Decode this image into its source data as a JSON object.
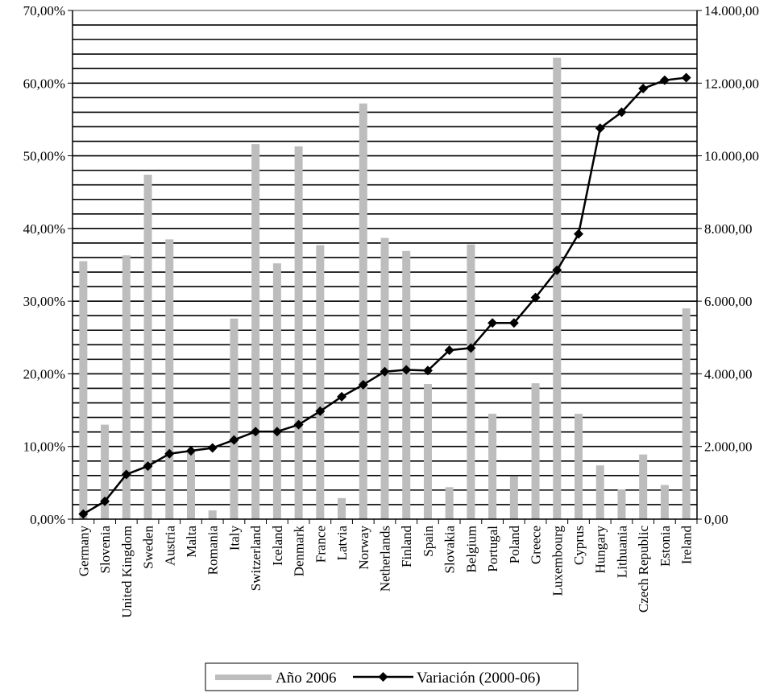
{
  "chart_data": {
    "type": "bar",
    "categories": [
      "Germany",
      "Slovenia",
      "United Kingdom",
      "Sweden",
      "Austria",
      "Malta",
      "Romania",
      "Italy",
      "Switzerland",
      "Iceland",
      "Denmark",
      "France",
      "Latvia",
      "Norway",
      "Netherlands",
      "Finland",
      "Spain",
      "Slovakia",
      "Belgium",
      "Portugal",
      "Poland",
      "Greece",
      "Luxembourg",
      "Cyprus",
      "Hungary",
      "Lithuania",
      "Czech Republic",
      "Estonia",
      "Ireland"
    ],
    "series": [
      {
        "name": "Año 2006",
        "type": "bar",
        "axis": "left",
        "color": "#bdbdbd",
        "values": [
          35.5,
          13.0,
          36.3,
          47.4,
          38.5,
          9.3,
          1.2,
          27.6,
          51.6,
          35.2,
          51.3,
          37.7,
          2.9,
          57.2,
          38.7,
          36.9,
          18.6,
          4.4,
          37.8,
          14.5,
          5.9,
          18.7,
          63.5,
          14.5,
          7.4,
          4.1,
          8.9,
          4.7,
          29.0
        ]
      },
      {
        "name": "Variación (2000-06)",
        "type": "line",
        "axis": "right",
        "color": "#000000",
        "marker": "diamond",
        "values": [
          140,
          490,
          1230,
          1460,
          1800,
          1880,
          1960,
          2180,
          2410,
          2410,
          2600,
          2970,
          3370,
          3700,
          4060,
          4110,
          4090,
          4650,
          4710,
          5400,
          5400,
          6100,
          6850,
          7850,
          10760,
          11200,
          11850,
          12080,
          12150
        ]
      }
    ],
    "y_left": {
      "range": [
        0,
        70
      ],
      "ticks": [
        "0,00%",
        "10,00%",
        "20,00%",
        "30,00%",
        "40,00%",
        "50,00%",
        "60,00%",
        "70,00%"
      ]
    },
    "y_right": {
      "range": [
        0,
        14000
      ],
      "ticks": [
        "0,00",
        "2.000,00",
        "4.000,00",
        "6.000,00",
        "8.000,00",
        "10.000,00",
        "12.000,00",
        "14.000,00"
      ]
    },
    "grid": true,
    "legend": "bottom",
    "title": "",
    "xlabel": "",
    "ylabel": ""
  }
}
